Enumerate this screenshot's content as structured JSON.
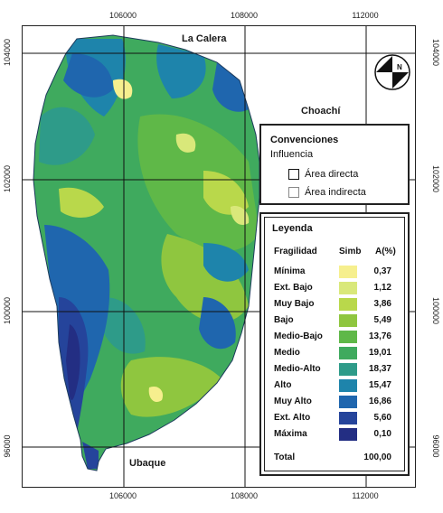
{
  "axes": {
    "x_ticks": [
      "106000",
      "108000",
      "112000"
    ],
    "y_ticks": [
      "104000",
      "102000",
      "100000",
      "96000"
    ]
  },
  "places": {
    "north": "La Calera",
    "east": "Choachí",
    "south": "Ubaque"
  },
  "north_arrow": {
    "label": "N"
  },
  "convenciones": {
    "title": "Convenciones",
    "subtitle": "Influencia",
    "items": [
      {
        "label": "Área directa",
        "border": "#111111"
      },
      {
        "label": "Área indirecta",
        "border": "#888888"
      }
    ]
  },
  "legend": {
    "title": "Leyenda",
    "headers": {
      "class": "Fragilidad",
      "symbol": "Simb",
      "area": "A(%)"
    },
    "items": [
      {
        "label": "Mínima",
        "color": "#f6ef8e",
        "pct": "0,37"
      },
      {
        "label": "Ext. Bajo",
        "color": "#d9e87a",
        "pct": "1,12"
      },
      {
        "label": "Muy Bajo",
        "color": "#b9d84b",
        "pct": "3,86"
      },
      {
        "label": "Bajo",
        "color": "#8fc63f",
        "pct": "5,49"
      },
      {
        "label": "Medio-Bajo",
        "color": "#5fb848",
        "pct": "13,76"
      },
      {
        "label": "Medio",
        "color": "#3faa5e",
        "pct": "19,01"
      },
      {
        "label": "Medio-Alto",
        "color": "#2e9b89",
        "pct": "18,37"
      },
      {
        "label": "Alto",
        "color": "#1e84ab",
        "pct": "15,47"
      },
      {
        "label": "Muy Alto",
        "color": "#1f66ae",
        "pct": "16,86"
      },
      {
        "label": "Ext. Alto",
        "color": "#25449b",
        "pct": "5,60"
      },
      {
        "label": "Máxima",
        "color": "#232e83",
        "pct": "0,10"
      }
    ],
    "total_label": "Total",
    "total_value": "100,00"
  }
}
